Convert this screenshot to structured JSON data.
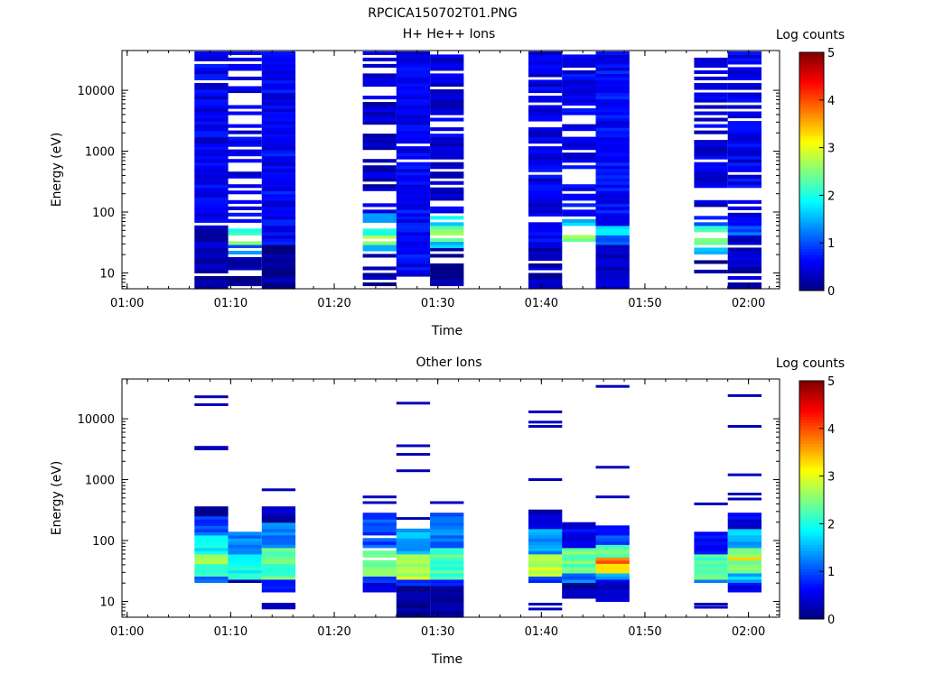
{
  "figure": {
    "title": "RPCICA150702T01.PNG"
  },
  "colorbar": {
    "label": "Log counts",
    "ticks": [
      "0",
      "1",
      "2",
      "3",
      "4",
      "5"
    ],
    "range": [
      0,
      5
    ],
    "colormap": [
      "#00007f",
      "#0000ff",
      "#007fff",
      "#00ffff",
      "#7fff7f",
      "#ffff00",
      "#ff7f00",
      "#ff0000",
      "#7f0000"
    ]
  },
  "chart_data": [
    {
      "type": "heatmap",
      "title": "H+ He++ Ions",
      "xlabel": "Time",
      "ylabel": "Energy (eV)",
      "xlim": [
        "00:59:30",
        "02:03:00"
      ],
      "ylim": [
        5.5,
        45000
      ],
      "yscale": "log",
      "xticks": [
        "01:00",
        "01:10",
        "01:20",
        "01:30",
        "01:40",
        "01:50",
        "02:00"
      ],
      "yticks": [
        "10",
        "100",
        "1000",
        "10000"
      ],
      "colorbar_label": "Log counts",
      "scans": [
        {
          "start": "01:06:30",
          "end": "01:09:45",
          "seed": 3,
          "emax": 42000,
          "emin": 5.5,
          "gap_frac": 0.05,
          "bands": [
            {
              "lo": 5.5,
              "hi": 10,
              "v": 0.1
            },
            {
              "lo": 10,
              "hi": 70,
              "v": 0.3
            },
            {
              "lo": 70,
              "hi": 42000,
              "v": 0.55
            }
          ]
        },
        {
          "start": "01:09:45",
          "end": "01:13:00",
          "seed": 7,
          "emax": 42000,
          "emin": 5.5,
          "gap_frac": 0.45,
          "bands": [
            {
              "lo": 5.5,
              "hi": 20,
              "v": 0.1
            },
            {
              "lo": 20,
              "hi": 30,
              "v": 1.2
            },
            {
              "lo": 30,
              "hi": 45,
              "v": 2.4
            },
            {
              "lo": 45,
              "hi": 65,
              "v": 2.0
            },
            {
              "lo": 65,
              "hi": 42000,
              "v": 0.5
            }
          ]
        },
        {
          "start": "01:13:00",
          "end": "01:16:15",
          "seed": 11,
          "emax": 42000,
          "emin": 5.5,
          "gap_frac": 0.03,
          "bands": [
            {
              "lo": 5.5,
              "hi": 30,
              "v": 0.15
            },
            {
              "lo": 30,
              "hi": 42000,
              "v": 0.6
            }
          ]
        },
        {
          "start": "01:22:45",
          "end": "01:26:00",
          "seed": 15,
          "emax": 42000,
          "emin": 5.5,
          "gap_frac": 0.35,
          "bands": [
            {
              "lo": 5.5,
              "hi": 20,
              "v": 0.2
            },
            {
              "lo": 20,
              "hi": 28,
              "v": 1.3
            },
            {
              "lo": 28,
              "hi": 40,
              "v": 2.6
            },
            {
              "lo": 40,
              "hi": 70,
              "v": 2.1
            },
            {
              "lo": 70,
              "hi": 100,
              "v": 1.4
            },
            {
              "lo": 100,
              "hi": 42000,
              "v": 0.35
            }
          ]
        },
        {
          "start": "01:26:00",
          "end": "01:29:15",
          "seed": 19,
          "emax": 42000,
          "emin": 9,
          "gap_frac": 0.02,
          "bands": [
            {
              "lo": 9,
              "hi": 42000,
              "v": 0.6
            }
          ]
        },
        {
          "start": "01:29:15",
          "end": "01:32:30",
          "seed": 23,
          "emax": 38000,
          "emin": 5.5,
          "gap_frac": 0.3,
          "bands": [
            {
              "lo": 5.5,
              "hi": 25,
              "v": 0.2
            },
            {
              "lo": 25,
              "hi": 35,
              "v": 1.5
            },
            {
              "lo": 35,
              "hi": 60,
              "v": 2.5
            },
            {
              "lo": 60,
              "hi": 100,
              "v": 1.7
            },
            {
              "lo": 100,
              "hi": 38000,
              "v": 0.45
            }
          ]
        },
        {
          "start": "01:38:45",
          "end": "01:42:00",
          "seed": 27,
          "emax": 42000,
          "emin": 5.5,
          "gap_frac": 0.12,
          "bands": [
            {
              "lo": 5.5,
              "hi": 25,
              "v": 0.25
            },
            {
              "lo": 25,
              "hi": 60,
              "v": 0.6
            },
            {
              "lo": 60,
              "hi": 42000,
              "v": 0.5
            }
          ]
        },
        {
          "start": "01:42:00",
          "end": "01:45:15",
          "seed": 31,
          "emax": 42000,
          "emin": 22,
          "gap_frac": 0.42,
          "bands": [
            {
              "lo": 22,
              "hi": 28,
              "v": 1.2
            },
            {
              "lo": 28,
              "hi": 45,
              "v": 2.6
            },
            {
              "lo": 45,
              "hi": 80,
              "v": 1.5
            },
            {
              "lo": 80,
              "hi": 42000,
              "v": 0.55
            }
          ]
        },
        {
          "start": "01:45:15",
          "end": "01:48:30",
          "seed": 35,
          "emax": 42000,
          "emin": 5.5,
          "gap_frac": 0.04,
          "bands": [
            {
              "lo": 5.5,
              "hi": 30,
              "v": 0.3
            },
            {
              "lo": 30,
              "hi": 40,
              "v": 1.0
            },
            {
              "lo": 40,
              "hi": 60,
              "v": 1.6
            },
            {
              "lo": 60,
              "hi": 42000,
              "v": 0.65
            }
          ]
        },
        {
          "start": "01:54:45",
          "end": "01:58:00",
          "seed": 39,
          "emax": 42000,
          "emin": 9,
          "gap_frac": 0.4,
          "bands": [
            {
              "lo": 9,
              "hi": 20,
              "v": 0.2
            },
            {
              "lo": 20,
              "hi": 28,
              "v": 1.5
            },
            {
              "lo": 28,
              "hi": 60,
              "v": 2.3
            },
            {
              "lo": 60,
              "hi": 100,
              "v": 1.0
            },
            {
              "lo": 100,
              "hi": 42000,
              "v": 0.45
            }
          ]
        },
        {
          "start": "01:58:00",
          "end": "02:01:15",
          "seed": 43,
          "emax": 42000,
          "emin": 5.5,
          "gap_frac": 0.15,
          "bands": [
            {
              "lo": 5.5,
              "hi": 40,
              "v": 0.3
            },
            {
              "lo": 40,
              "hi": 60,
              "v": 1.1
            },
            {
              "lo": 60,
              "hi": 42000,
              "v": 0.55
            }
          ]
        }
      ]
    },
    {
      "type": "heatmap",
      "title": "Other Ions",
      "xlabel": "Time",
      "ylabel": "Energy (eV)",
      "xlim": [
        "00:59:30",
        "02:03:00"
      ],
      "ylim": [
        5.5,
        45000
      ],
      "yscale": "log",
      "xticks": [
        "01:00",
        "01:10",
        "01:20",
        "01:30",
        "01:40",
        "01:50",
        "02:00"
      ],
      "yticks": [
        "10",
        "100",
        "1000",
        "10000"
      ],
      "colorbar_label": "Log counts",
      "scans": [
        {
          "start": "01:06:30",
          "end": "01:09:45",
          "seed": 51,
          "emax": 380,
          "emin": 20,
          "gap_frac": 0.0,
          "lines": [
            3200,
            3400,
            17000,
            23000
          ],
          "bands": [
            {
              "lo": 20,
              "hi": 26,
              "v": 1.0
            },
            {
              "lo": 26,
              "hi": 40,
              "v": 2.1
            },
            {
              "lo": 40,
              "hi": 60,
              "v": 2.8
            },
            {
              "lo": 60,
              "hi": 120,
              "v": 1.8
            },
            {
              "lo": 120,
              "hi": 250,
              "v": 1.0
            },
            {
              "lo": 250,
              "hi": 380,
              "v": 0.25
            }
          ]
        },
        {
          "start": "01:09:45",
          "end": "01:13:00",
          "seed": 55,
          "emax": 140,
          "emin": 20,
          "gap_frac": 0.0,
          "bands": [
            {
              "lo": 20,
              "hi": 24,
              "v": 0.3
            },
            {
              "lo": 24,
              "hi": 60,
              "v": 2.0
            },
            {
              "lo": 60,
              "hi": 140,
              "v": 1.3
            }
          ]
        },
        {
          "start": "01:13:00",
          "end": "01:16:15",
          "seed": 59,
          "emax": 380,
          "emin": 15,
          "gap_frac": 0.0,
          "lines": [
            7.8,
            8.2,
            9.0,
            680
          ],
          "bands": [
            {
              "lo": 15,
              "hi": 22,
              "v": 0.6
            },
            {
              "lo": 22,
              "hi": 80,
              "v": 2.3
            },
            {
              "lo": 80,
              "hi": 200,
              "v": 1.3
            },
            {
              "lo": 200,
              "hi": 380,
              "v": 0.3
            }
          ]
        },
        {
          "start": "01:22:45",
          "end": "01:26:00",
          "seed": 63,
          "emax": 300,
          "emin": 15,
          "gap_frac": 0.1,
          "lines": [
            420,
            520
          ],
          "bands": [
            {
              "lo": 15,
              "hi": 20,
              "v": 0.25
            },
            {
              "lo": 20,
              "hi": 26,
              "v": 1.0
            },
            {
              "lo": 26,
              "hi": 80,
              "v": 2.4
            },
            {
              "lo": 80,
              "hi": 300,
              "v": 1.0
            }
          ]
        },
        {
          "start": "01:26:00",
          "end": "01:29:15",
          "seed": 67,
          "emax": 150,
          "emin": 5.5,
          "gap_frac": 0.0,
          "lines": [
            230,
            1400,
            2600,
            3600,
            18000
          ],
          "bands": [
            {
              "lo": 5.5,
              "hi": 18,
              "v": 0.15
            },
            {
              "lo": 18,
              "hi": 24,
              "v": 1.0
            },
            {
              "lo": 24,
              "hi": 60,
              "v": 2.8
            },
            {
              "lo": 60,
              "hi": 150,
              "v": 1.5
            }
          ]
        },
        {
          "start": "01:29:15",
          "end": "01:32:30",
          "seed": 71,
          "emax": 290,
          "emin": 5.5,
          "gap_frac": 0.0,
          "lines": [
            420
          ],
          "bands": [
            {
              "lo": 5.5,
              "hi": 18,
              "v": 0.15
            },
            {
              "lo": 18,
              "hi": 24,
              "v": 0.8
            },
            {
              "lo": 24,
              "hi": 80,
              "v": 2.2
            },
            {
              "lo": 80,
              "hi": 290,
              "v": 1.2
            }
          ]
        },
        {
          "start": "01:38:45",
          "end": "01:42:00",
          "seed": 75,
          "emax": 330,
          "emin": 20,
          "gap_frac": 0.05,
          "lines": [
            7.5,
            9.0,
            1000,
            7500,
            8800,
            13000
          ],
          "bands": [
            {
              "lo": 20,
              "hi": 26,
              "v": 1.0
            },
            {
              "lo": 26,
              "hi": 60,
              "v": 2.8
            },
            {
              "lo": 60,
              "hi": 150,
              "v": 1.4
            },
            {
              "lo": 150,
              "hi": 330,
              "v": 0.35
            }
          ]
        },
        {
          "start": "01:42:00",
          "end": "01:45:15",
          "seed": 79,
          "emax": 190,
          "emin": 11,
          "gap_frac": 0.0,
          "bands": [
            {
              "lo": 11,
              "hi": 20,
              "v": 0.3
            },
            {
              "lo": 20,
              "hi": 28,
              "v": 1.2
            },
            {
              "lo": 28,
              "hi": 80,
              "v": 2.4
            },
            {
              "lo": 80,
              "hi": 190,
              "v": 0.6
            }
          ]
        },
        {
          "start": "01:45:15",
          "end": "01:48:30",
          "seed": 83,
          "emax": 170,
          "emin": 9.5,
          "gap_frac": 0.0,
          "lines": [
            520,
            1600,
            34000
          ],
          "bands": [
            {
              "lo": 9.5,
              "hi": 22,
              "v": 0.3
            },
            {
              "lo": 22,
              "hi": 30,
              "v": 1.5
            },
            {
              "lo": 30,
              "hi": 40,
              "v": 3.4
            },
            {
              "lo": 40,
              "hi": 55,
              "v": 3.8
            },
            {
              "lo": 55,
              "hi": 90,
              "v": 2.3
            },
            {
              "lo": 90,
              "hi": 170,
              "v": 0.9
            }
          ]
        },
        {
          "start": "01:54:45",
          "end": "01:58:00",
          "seed": 87,
          "emax": 140,
          "emin": 20,
          "gap_frac": 0.0,
          "lines": [
            8.0,
            9.0,
            400
          ],
          "bands": [
            {
              "lo": 20,
              "hi": 24,
              "v": 1.4
            },
            {
              "lo": 24,
              "hi": 60,
              "v": 2.3
            },
            {
              "lo": 60,
              "hi": 140,
              "v": 0.6
            }
          ]
        },
        {
          "start": "01:58:00",
          "end": "02:01:15",
          "seed": 91,
          "emax": 300,
          "emin": 15,
          "gap_frac": 0.0,
          "lines": [
            480,
            580,
            1200,
            7500,
            24000
          ],
          "bands": [
            {
              "lo": 15,
              "hi": 20,
              "v": 0.6
            },
            {
              "lo": 20,
              "hi": 30,
              "v": 1.6
            },
            {
              "lo": 30,
              "hi": 45,
              "v": 2.4
            },
            {
              "lo": 45,
              "hi": 55,
              "v": 3.2
            },
            {
              "lo": 55,
              "hi": 80,
              "v": 2.5
            },
            {
              "lo": 80,
              "hi": 150,
              "v": 1.5
            },
            {
              "lo": 150,
              "hi": 300,
              "v": 0.5
            }
          ]
        }
      ]
    }
  ]
}
